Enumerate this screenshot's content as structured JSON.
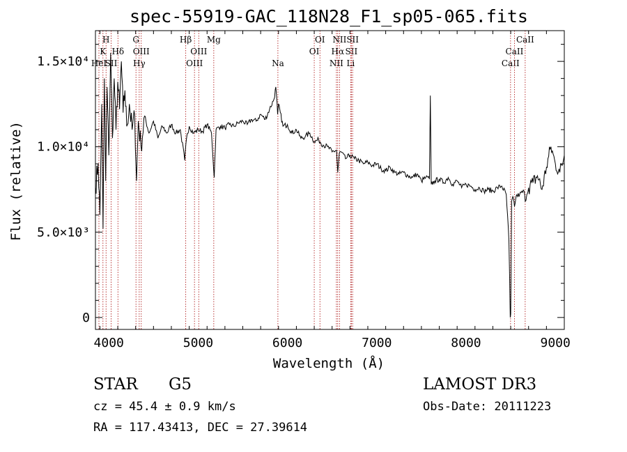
{
  "chart_data": {
    "type": "line",
    "title": "spec-55919-GAC_118N28_F1_sp05-065.fits",
    "xlabel": "Wavelength (Å)",
    "ylabel": "Flux (relative)",
    "xlim": [
      3850,
      9100
    ],
    "ylim": [
      -700,
      16800
    ],
    "x_ticks": [
      4000,
      5000,
      6000,
      7000,
      8000,
      9000
    ],
    "x_tick_labels": [
      "4000",
      "5000",
      "6000",
      "7000",
      "8000",
      "9000"
    ],
    "y_ticks": [
      0,
      5000,
      10000,
      15000
    ],
    "y_tick_labels": [
      "0",
      "5.0×10³",
      "1.0×10⁴",
      "1.5×10⁴"
    ],
    "grid": false,
    "line_color": "#000000",
    "marker_color": "#b22222",
    "series": [
      {
        "x": [
          3850,
          3880,
          3900,
          3920,
          3935,
          3950,
          3965,
          3980,
          4000,
          4020,
          4040,
          4060,
          4080,
          4100,
          4120,
          4140,
          4160,
          4180,
          4200,
          4230,
          4260,
          4290,
          4310,
          4330,
          4360,
          4400,
          4450,
          4500,
          4550,
          4600,
          4650,
          4700,
          4750,
          4800,
          4850,
          4870,
          4900,
          4950,
          5000,
          5050,
          5100,
          5150,
          5180,
          5200,
          5250,
          5300,
          5350,
          5400,
          5450,
          5500,
          5550,
          5600,
          5650,
          5700,
          5750,
          5800,
          5850,
          5870,
          5890,
          5900,
          5920,
          5950,
          6000,
          6050,
          6100,
          6150,
          6200,
          6250,
          6300,
          6350,
          6400,
          6450,
          6500,
          6550,
          6563,
          6580,
          6600,
          6650,
          6700,
          6750,
          6800,
          6850,
          6900,
          6950,
          7000,
          7050,
          7100,
          7150,
          7200,
          7250,
          7300,
          7350,
          7400,
          7450,
          7500,
          7550,
          7590,
          7600,
          7610,
          7650,
          7700,
          7750,
          7800,
          7850,
          7900,
          7950,
          8000,
          8050,
          8100,
          8150,
          8200,
          8250,
          8300,
          8350,
          8400,
          8450,
          8480,
          8495,
          8500,
          8510,
          8530,
          8542,
          8560,
          8600,
          8650,
          8662,
          8680,
          8700,
          8750,
          8800,
          8850,
          8900,
          8950,
          9000,
          9050,
          9100
        ],
        "y": [
          7600,
          9000,
          6000,
          12500,
          5200,
          14000,
          8000,
          13500,
          9500,
          15500,
          10500,
          14000,
          11000,
          13800,
          12200,
          15000,
          12000,
          13300,
          11200,
          12500,
          11000,
          11800,
          8000,
          11500,
          10000,
          11800,
          10800,
          11500,
          10500,
          11200,
          10800,
          11300,
          10800,
          11000,
          9200,
          10500,
          11200,
          10800,
          11000,
          10900,
          11300,
          10800,
          8200,
          11000,
          11200,
          11100,
          11300,
          11200,
          11400,
          11500,
          11300,
          11600,
          11500,
          11900,
          11600,
          12200,
          12800,
          13500,
          11900,
          12500,
          12000,
          11200,
          11300,
          10800,
          11000,
          10500,
          10600,
          10800,
          10300,
          10400,
          10100,
          10000,
          9700,
          9800,
          8500,
          9600,
          9700,
          9300,
          9500,
          9300,
          9200,
          9000,
          9100,
          8900,
          9000,
          8700,
          8600,
          8800,
          8500,
          8400,
          8500,
          8300,
          8200,
          8400,
          8000,
          8200,
          8100,
          13000,
          7800,
          8000,
          8100,
          7900,
          8200,
          7800,
          8000,
          7600,
          7800,
          7700,
          7500,
          7600,
          7400,
          7500,
          7400,
          7600,
          7700,
          7200,
          4500,
          0,
          200,
          6800,
          7000,
          6500,
          7100,
          7200,
          7400,
          6800,
          7200,
          7600,
          7900,
          8300,
          7500,
          8800,
          10000,
          9000,
          8500,
          9500
        ]
      }
    ],
    "lines": [
      {
        "wave": 3889,
        "label": "HeI",
        "row": 2
      },
      {
        "wave": 3934,
        "label": "K",
        "row": 1
      },
      {
        "wave": 3969,
        "label": "H",
        "row": 0
      },
      {
        "wave": 4026,
        "label": "SII",
        "row": 2
      },
      {
        "wave": 4102,
        "label": "Hδ",
        "row": 1
      },
      {
        "wave": 4304,
        "label": "G",
        "row": 0
      },
      {
        "wave": 4340,
        "label": "Hγ",
        "row": 2
      },
      {
        "wave": 4363,
        "label": "OIII",
        "row": 1
      },
      {
        "wave": 4861,
        "label": "Hβ",
        "row": 0
      },
      {
        "wave": 4959,
        "label": "OIII",
        "row": 2
      },
      {
        "wave": 5007,
        "label": "OIII",
        "row": 1
      },
      {
        "wave": 5175,
        "label": "Mg",
        "row": 0
      },
      {
        "wave": 5893,
        "label": "Na",
        "row": 2
      },
      {
        "wave": 6300,
        "label": "OI",
        "row": 1
      },
      {
        "wave": 6364,
        "label": "OI",
        "row": 0
      },
      {
        "wave": 6548,
        "label": "NII",
        "row": 2
      },
      {
        "wave": 6563,
        "label": "Hα",
        "row": 1
      },
      {
        "wave": 6583,
        "label": "NII",
        "row": 0
      },
      {
        "wave": 6708,
        "label": "Li",
        "row": 2
      },
      {
        "wave": 6716,
        "label": "SII",
        "row": 1
      },
      {
        "wave": 6730,
        "label": "SII",
        "row": 0
      },
      {
        "wave": 8498,
        "label": "CaII",
        "row": 2
      },
      {
        "wave": 8542,
        "label": "CaII",
        "row": 1
      },
      {
        "wave": 8662,
        "label": "CaII",
        "row": 0
      }
    ]
  },
  "info": {
    "object_class": "STAR",
    "subclass": "G5",
    "survey": "LAMOST DR3",
    "redshift": "cz = 45.4 ± 0.9 km/s",
    "obs_date": "Obs-Date: 20111223",
    "coords": "RA = 117.43413, DEC =  27.39614"
  }
}
